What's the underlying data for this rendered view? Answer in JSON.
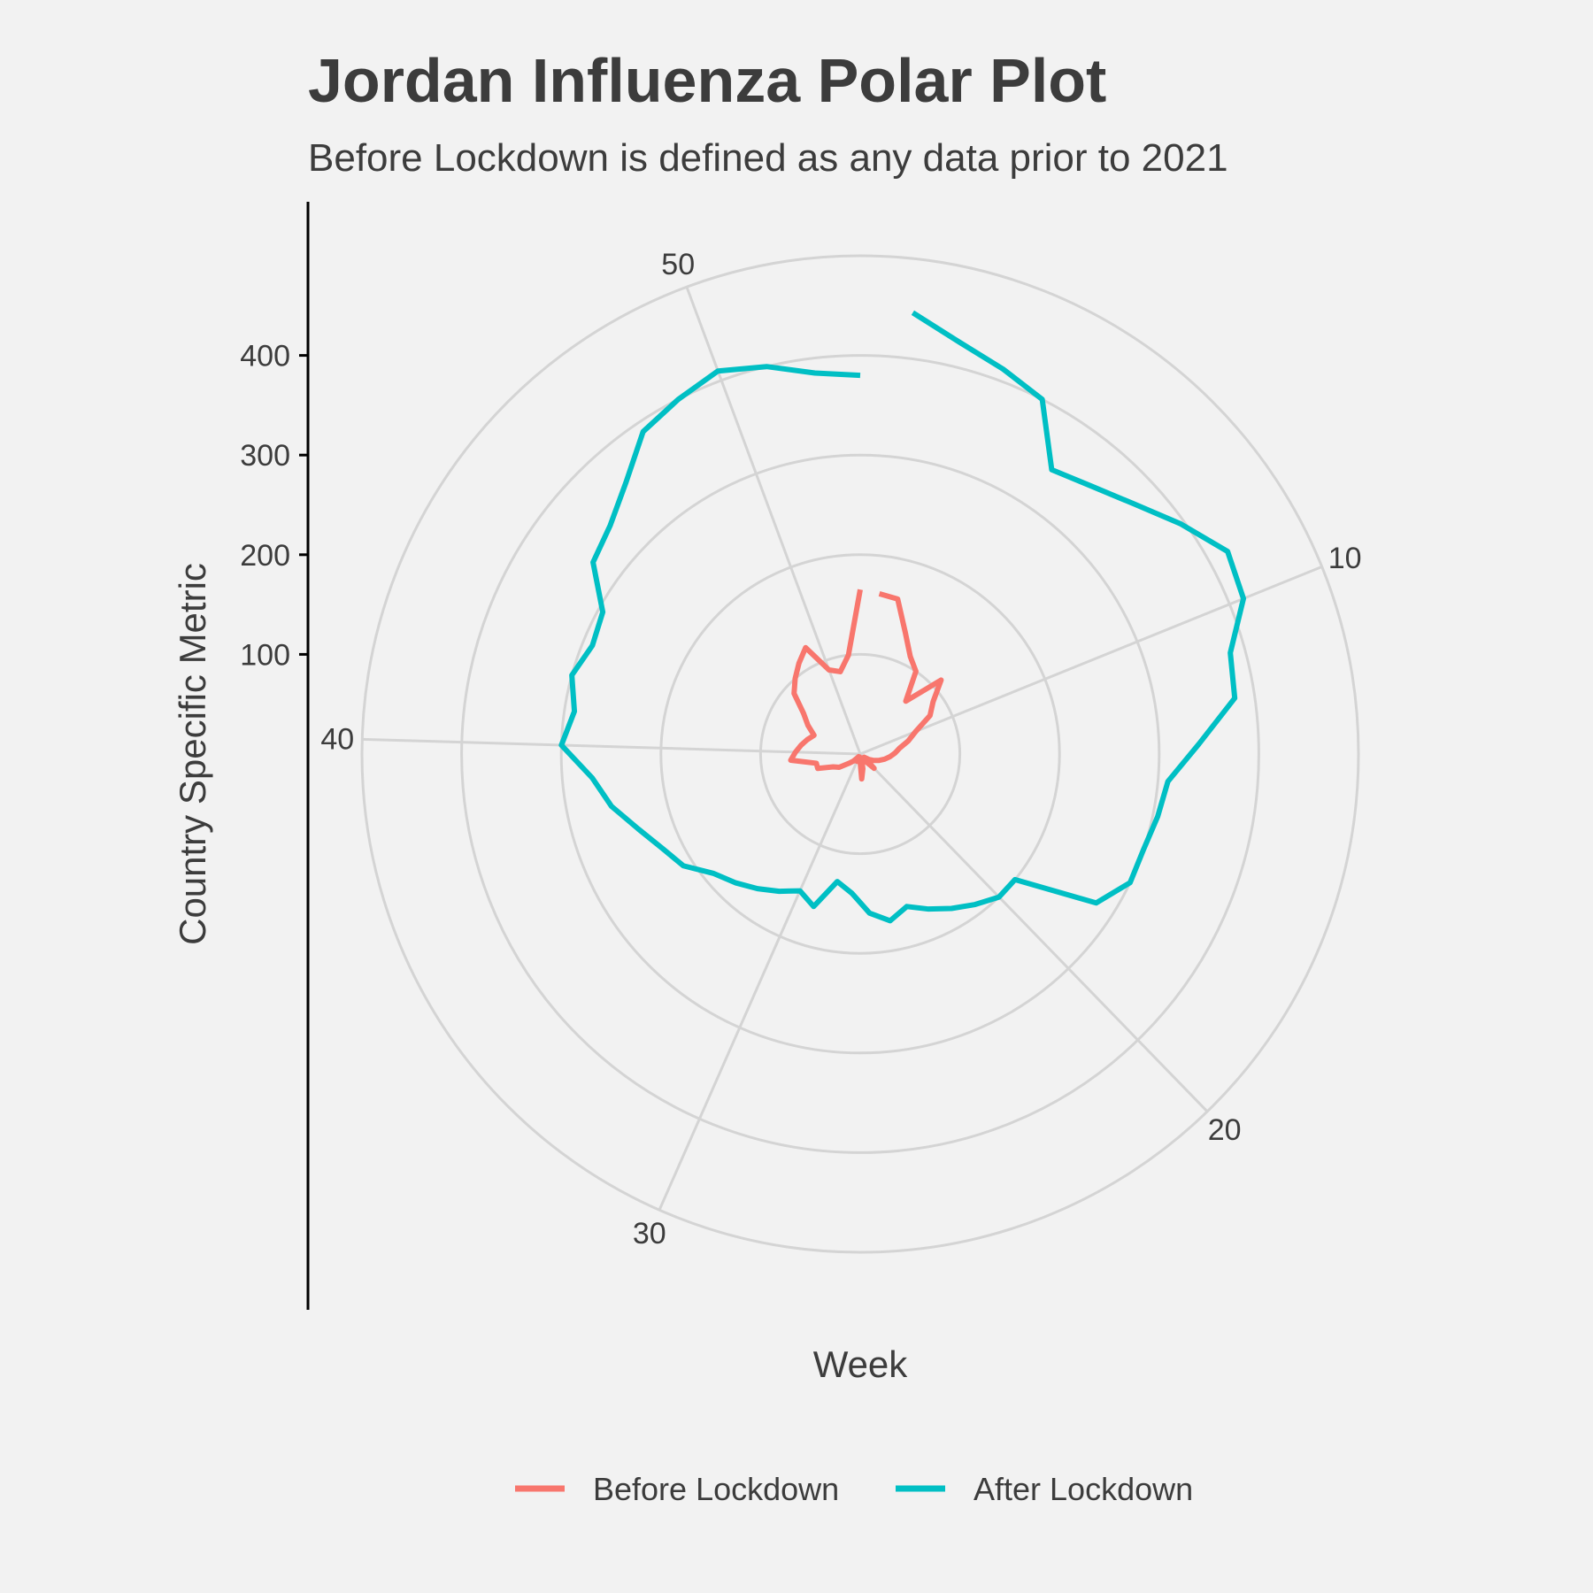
{
  "chart_data": {
    "type": "line",
    "coordinate_system": "polar",
    "title": "Jordan Influenza Polar Plot",
    "subtitle": "Before Lockdown is defined as any data prior to 2021",
    "xlabel": "Week",
    "ylabel": "Country Specific Metric",
    "theta_range": [
      0,
      53
    ],
    "r_range": [
      0,
      500
    ],
    "theta_ticks": [
      10,
      20,
      30,
      40,
      50
    ],
    "r_ticks": [
      100,
      200,
      300,
      400
    ],
    "r_grid": [
      0,
      100,
      200,
      300,
      400,
      500
    ],
    "grid": true,
    "legend_position": "bottom",
    "series": [
      {
        "name": "Before Lockdown",
        "color": "#F8766D",
        "x": [
          1,
          2,
          3,
          4,
          5,
          6,
          7,
          8,
          9,
          10,
          11,
          12,
          13,
          14,
          15,
          16,
          17,
          18,
          19,
          20,
          21,
          22,
          23,
          24,
          25,
          26,
          27,
          28,
          29,
          30,
          31,
          32,
          33,
          34,
          35,
          36,
          37,
          38,
          39,
          40,
          41,
          42,
          43,
          44,
          45,
          46,
          47,
          48,
          49,
          50,
          51,
          52,
          53
        ],
        "values": [
          162,
          160,
          130,
          110,
          100,
          70,
          110,
          90,
          80,
          60,
          50,
          40,
          35,
          30,
          25,
          20,
          15,
          10,
          5,
          20,
          10,
          8,
          5,
          5,
          15,
          25,
          5,
          3,
          5,
          8,
          3,
          5,
          10,
          15,
          25,
          30,
          45,
          45,
          70,
          65,
          60,
          55,
          50,
          60,
          70,
          90,
          100,
          110,
          120,
          90,
          85,
          100,
          165
        ]
      },
      {
        "name": "After Lockdown",
        "color": "#00BFC4",
        "x": [
          1,
          2,
          3,
          4,
          5,
          6,
          7,
          8,
          9,
          10,
          11,
          12,
          13,
          14,
          15,
          16,
          17,
          18,
          19,
          20,
          21,
          22,
          23,
          24,
          25,
          26,
          27,
          28,
          29,
          30,
          31,
          32,
          33,
          34,
          35,
          36,
          37,
          38,
          39,
          40,
          41,
          42,
          43,
          44,
          45,
          46,
          47,
          48,
          49,
          50,
          51,
          52,
          53
        ],
        "values": [
          446,
          425,
          412,
          400,
          344,
          355,
          372,
          396,
          421,
          415,
          385,
          380,
          340,
          310,
          305,
          300,
          300,
          280,
          200,
          200,
          190,
          180,
          170,
          160,
          170,
          160,
          140,
          130,
          160,
          150,
          160,
          170,
          180,
          190,
          210,
          220,
          235,
          255,
          270,
          300,
          290,
          300,
          290,
          295,
          330,
          340,
          360,
          390,
          400,
          410,
          400,
          385,
          380
        ]
      }
    ]
  }
}
